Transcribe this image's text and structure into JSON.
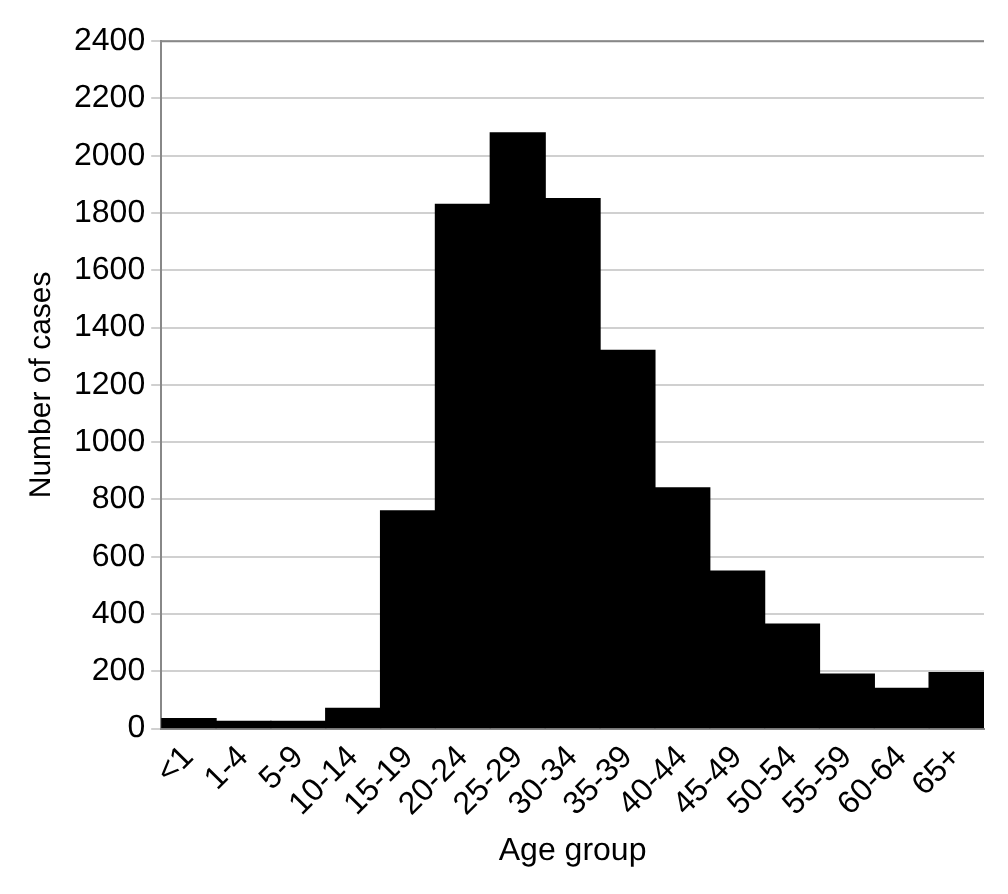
{
  "chart_data": {
    "type": "bar",
    "xlabel": "Age group",
    "ylabel": "Number of cases",
    "categories": [
      "<1",
      "1-4",
      "5-9",
      "10-14",
      "15-19",
      "20-24",
      "25-29",
      "30-34",
      "35-39",
      "40-44",
      "45-49",
      "50-54",
      "55-59",
      "60-64",
      "65+"
    ],
    "values": [
      35,
      25,
      25,
      70,
      760,
      1830,
      2080,
      1850,
      1320,
      840,
      550,
      365,
      190,
      140,
      195
    ],
    "color": "#000000",
    "ylim": [
      0,
      2400
    ],
    "yticks": [
      0,
      200,
      400,
      600,
      800,
      1000,
      1200,
      1400,
      1600,
      1800,
      2000,
      2200,
      2400
    ],
    "grid": "y"
  }
}
